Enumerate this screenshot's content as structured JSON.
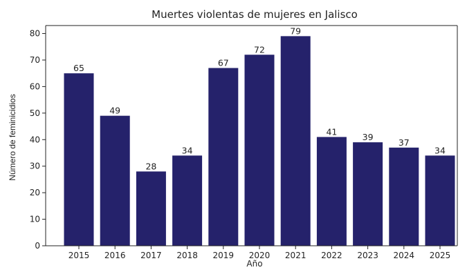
{
  "chart_data": {
    "type": "bar",
    "title": "Muertes violentas de mujeres en Jalisco",
    "xlabel": "Año",
    "ylabel": "Número de feminicidios",
    "categories": [
      "2015",
      "2016",
      "2017",
      "2018",
      "2019",
      "2020",
      "2021",
      "2022",
      "2023",
      "2024",
      "2025"
    ],
    "values": [
      65,
      49,
      28,
      34,
      67,
      72,
      79,
      41,
      39,
      37,
      34
    ],
    "ylim": [
      0,
      83
    ],
    "yticks": [
      0,
      10,
      20,
      30,
      40,
      50,
      60,
      70,
      80
    ],
    "bar_color": "#25226b",
    "grid": false,
    "legend": "none"
  }
}
